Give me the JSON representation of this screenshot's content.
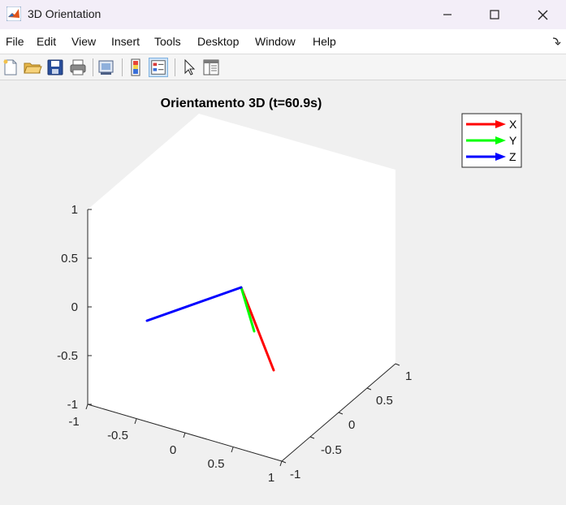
{
  "window": {
    "title": "3D Orientation",
    "minimize_icon": "minimize-icon",
    "maximize_icon": "maximize-icon",
    "close_icon": "close-icon"
  },
  "menubar": {
    "items": [
      "File",
      "Edit",
      "View",
      "Insert",
      "Tools",
      "Desktop",
      "Window",
      "Help"
    ]
  },
  "toolbar": {
    "icons": [
      "new-figure-icon",
      "open-file-icon",
      "save-icon",
      "print-icon",
      "print-preview-icon",
      "colorbar-icon",
      "legend-icon",
      "pointer-icon",
      "property-editor-icon"
    ]
  },
  "chart_data": {
    "type": "line",
    "title": "Orientamento 3D (t=60.9s)",
    "view": "3d",
    "xlim": [
      -1,
      1
    ],
    "ylim": [
      -1,
      1
    ],
    "zlim": [
      -1,
      1
    ],
    "x_ticks": [
      "-1",
      "-0.5",
      "0",
      "0.5",
      "1"
    ],
    "y_ticks": [
      "-1",
      "-0.5",
      "0",
      "0.5",
      "1"
    ],
    "z_ticks": [
      "1",
      "0.5",
      "0",
      "-0.5",
      "-1"
    ],
    "grid": false,
    "legend_position": "top-right",
    "series": [
      {
        "name": "X",
        "color": "#ff0000"
      },
      {
        "name": "Y",
        "color": "#00ff00"
      },
      {
        "name": "Z",
        "color": "#0000ff"
      }
    ]
  }
}
